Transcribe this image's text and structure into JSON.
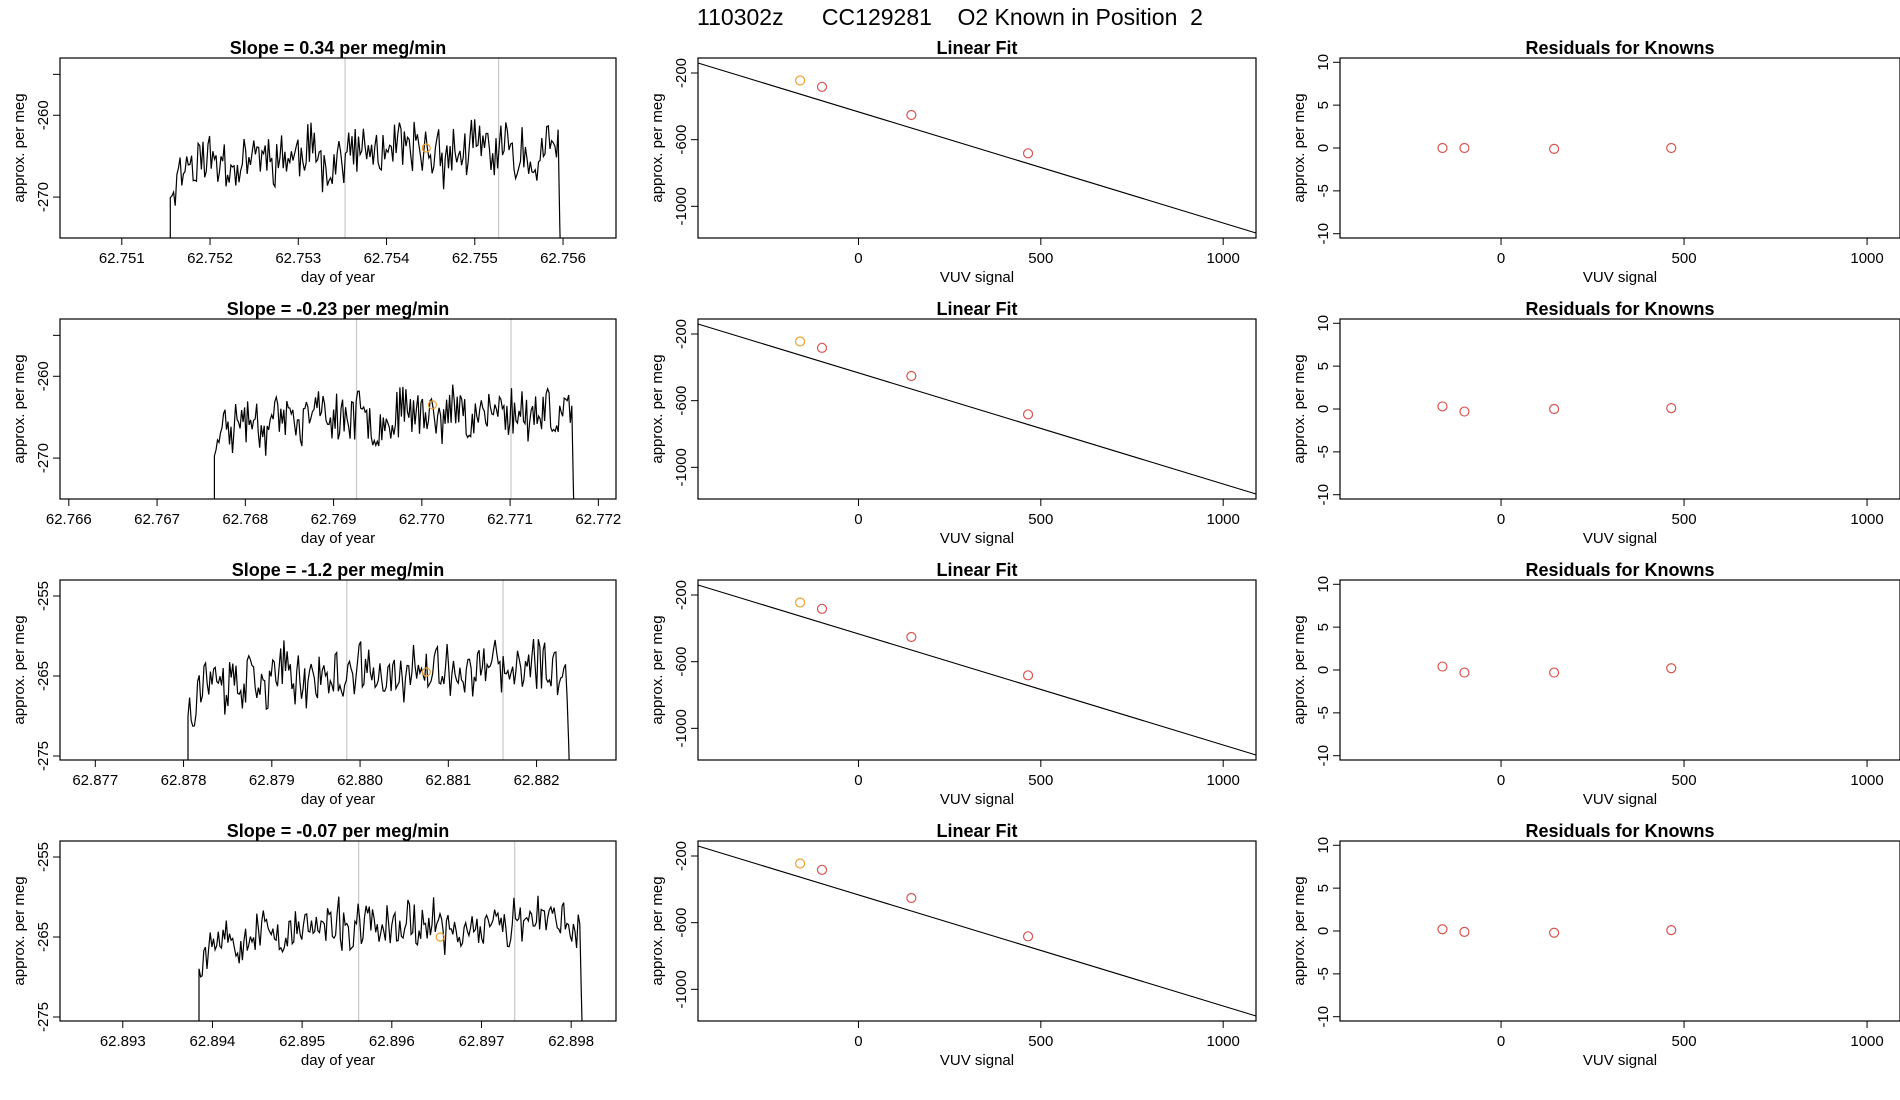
{
  "page_title": "110302z      CC129281    O2 Known in Position  2",
  "chart_data": [
    {
      "type": "line",
      "panel": "time-series",
      "title": "Slope =  0.34  per meg/min",
      "xlabel": "day of year",
      "ylabel": "approx. per meg",
      "xlim": [
        62.7503,
        62.7566
      ],
      "ylim": [
        -275,
        -253
      ],
      "xticks": [
        62.751,
        62.752,
        62.753,
        62.754,
        62.755,
        62.756
      ],
      "xtick_labels": [
        "62.751",
        "62.752",
        "62.753",
        "62.754",
        "62.755",
        "62.756"
      ],
      "yticks": [
        -270,
        -260
      ],
      "ytick_labels": [
        "-270",
        "-260"
      ],
      "yextra_ticks": [
        -255
      ],
      "vlines": [
        62.75353,
        62.75527
      ],
      "start": 62.75155,
      "end": 62.756,
      "baseline": -265.5,
      "amp": 2.8,
      "seed": 11,
      "marker": {
        "x": 62.75445,
        "y": -264
      }
    },
    {
      "type": "scatter",
      "panel": "linear-fit",
      "title": "Linear Fit",
      "xlabel": "VUV signal",
      "ylabel": "approx. per meg",
      "xlim": [
        -440,
        1090
      ],
      "ylim": [
        -1190,
        -110
      ],
      "xticks": [
        0,
        500,
        1000
      ],
      "xtick_labels": [
        "0",
        "500",
        "1000"
      ],
      "yticks": [
        -1000,
        -600,
        -200
      ],
      "ytick_labels": [
        "-1000",
        "-600",
        "-200"
      ],
      "line": {
        "x": [
          -440,
          1090
        ],
        "y": [
          -140,
          -1160
        ]
      },
      "points": {
        "x": [
          -160,
          -100,
          145,
          465
        ],
        "y": [
          -245,
          -283,
          -452,
          -682
        ]
      },
      "highlight_index": 0
    },
    {
      "type": "scatter",
      "panel": "residuals",
      "title": "Residuals for Knowns",
      "xlabel": "VUV signal",
      "ylabel": "approx. per meg",
      "xlim": [
        -440,
        1090
      ],
      "ylim": [
        -10.5,
        10.5
      ],
      "xticks": [
        0,
        500,
        1000
      ],
      "xtick_labels": [
        "0",
        "500",
        "1000"
      ],
      "yticks": [
        -10,
        -5,
        0,
        5,
        10
      ],
      "ytick_labels": [
        "-10",
        "-5",
        "0",
        "5",
        "10"
      ],
      "points": {
        "x": [
          -160,
          -100,
          145,
          465
        ],
        "y": [
          0.0,
          0.0,
          -0.1,
          0.0
        ]
      }
    },
    {
      "type": "line",
      "panel": "time-series",
      "title": "Slope =  -0.23  per meg/min",
      "xlabel": "day of year",
      "ylabel": "approx. per meg",
      "xlim": [
        62.7659,
        62.7722
      ],
      "ylim": [
        -275,
        -253
      ],
      "xticks": [
        62.766,
        62.767,
        62.768,
        62.769,
        62.77,
        62.771,
        62.772
      ],
      "xtick_labels": [
        "62.766",
        "62.767",
        "62.768",
        "62.769",
        "62.770",
        "62.771",
        "62.772"
      ],
      "yticks": [
        -270,
        -260
      ],
      "ytick_labels": [
        "-270",
        "-260"
      ],
      "yextra_ticks": [
        -255
      ],
      "vlines": [
        62.76926,
        62.77101
      ],
      "start": 62.76765,
      "end": 62.77175,
      "baseline": -265.2,
      "amp": 2.6,
      "seed": 23,
      "marker": {
        "x": 62.77012,
        "y": -263.5
      }
    },
    {
      "type": "scatter",
      "panel": "linear-fit",
      "title": "Linear Fit",
      "xlabel": "VUV signal",
      "ylabel": "approx. per meg",
      "xlim": [
        -440,
        1090
      ],
      "ylim": [
        -1190,
        -110
      ],
      "xticks": [
        0,
        500,
        1000
      ],
      "xtick_labels": [
        "0",
        "500",
        "1000"
      ],
      "yticks": [
        -1000,
        -600,
        -200
      ],
      "ytick_labels": [
        "-1000",
        "-600",
        "-200"
      ],
      "line": {
        "x": [
          -440,
          1090
        ],
        "y": [
          -140,
          -1160
        ]
      },
      "points": {
        "x": [
          -160,
          -100,
          145,
          465
        ],
        "y": [
          -245,
          -283,
          -452,
          -682
        ]
      },
      "highlight_index": 0
    },
    {
      "type": "scatter",
      "panel": "residuals",
      "title": "Residuals for Knowns",
      "xlabel": "VUV signal",
      "ylabel": "approx. per meg",
      "xlim": [
        -440,
        1090
      ],
      "ylim": [
        -10.5,
        10.5
      ],
      "xticks": [
        0,
        500,
        1000
      ],
      "xtick_labels": [
        "0",
        "500",
        "1000"
      ],
      "yticks": [
        -10,
        -5,
        0,
        5,
        10
      ],
      "ytick_labels": [
        "-10",
        "-5",
        "0",
        "5",
        "10"
      ],
      "points": {
        "x": [
          -160,
          -100,
          145,
          465
        ],
        "y": [
          0.3,
          -0.3,
          0.0,
          0.1
        ]
      }
    },
    {
      "type": "line",
      "panel": "time-series",
      "title": "Slope =  -1.2  per meg/min",
      "xlabel": "day of year",
      "ylabel": "approx. per meg",
      "xlim": [
        62.8766,
        62.8829
      ],
      "ylim": [
        -275.5,
        -253
      ],
      "xticks": [
        62.877,
        62.878,
        62.879,
        62.88,
        62.881,
        62.882
      ],
      "xtick_labels": [
        "62.877",
        "62.878",
        "62.879",
        "62.880",
        "62.881",
        "62.882"
      ],
      "yticks": [
        -275,
        -265,
        -255
      ],
      "ytick_labels": [
        "-275",
        "-265",
        "-255"
      ],
      "yextra_ticks": [],
      "vlines": [
        62.87985,
        62.88162
      ],
      "start": 62.87805,
      "end": 62.8824,
      "baseline": -265.5,
      "amp": 3.0,
      "seed": 37,
      "marker": {
        "x": 62.88075,
        "y": -264.5
      }
    },
    {
      "type": "scatter",
      "panel": "linear-fit",
      "title": "Linear Fit",
      "xlabel": "VUV signal",
      "ylabel": "approx. per meg",
      "xlim": [
        -440,
        1090
      ],
      "ylim": [
        -1190,
        -110
      ],
      "xticks": [
        0,
        500,
        1000
      ],
      "xtick_labels": [
        "0",
        "500",
        "1000"
      ],
      "yticks": [
        -1000,
        -600,
        -200
      ],
      "ytick_labels": [
        "-1000",
        "-600",
        "-200"
      ],
      "line": {
        "x": [
          -440,
          1090
        ],
        "y": [
          -140,
          -1160
        ]
      },
      "points": {
        "x": [
          -160,
          -100,
          145,
          465
        ],
        "y": [
          -245,
          -283,
          -452,
          -682
        ]
      },
      "highlight_index": 0
    },
    {
      "type": "scatter",
      "panel": "residuals",
      "title": "Residuals for Knowns",
      "xlabel": "VUV signal",
      "ylabel": "approx. per meg",
      "xlim": [
        -440,
        1090
      ],
      "ylim": [
        -10.5,
        10.5
      ],
      "xticks": [
        0,
        500,
        1000
      ],
      "xtick_labels": [
        "0",
        "500",
        "1000"
      ],
      "yticks": [
        -10,
        -5,
        0,
        5,
        10
      ],
      "ytick_labels": [
        "-10",
        "-5",
        "0",
        "5",
        "10"
      ],
      "points": {
        "x": [
          -160,
          -100,
          145,
          465
        ],
        "y": [
          0.4,
          -0.3,
          -0.3,
          0.2
        ]
      }
    },
    {
      "type": "line",
      "panel": "time-series",
      "title": "Slope =  -0.07  per meg/min",
      "xlabel": "day of year",
      "ylabel": "approx. per meg",
      "xlim": [
        62.8923,
        62.8985
      ],
      "ylim": [
        -275.5,
        -253
      ],
      "xticks": [
        62.893,
        62.894,
        62.895,
        62.896,
        62.897,
        62.898
      ],
      "xtick_labels": [
        "62.893",
        "62.894",
        "62.895",
        "62.896",
        "62.897",
        "62.898"
      ],
      "yticks": [
        -275,
        -265,
        -255
      ],
      "ytick_labels": [
        "-275",
        "-265",
        "-255"
      ],
      "yextra_ticks": [],
      "vlines": [
        62.89563,
        62.89737
      ],
      "start": 62.89385,
      "end": 62.89815,
      "baseline": -264.5,
      "amp": 2.3,
      "seed": 53,
      "marker": {
        "x": 62.89654,
        "y": -265
      }
    },
    {
      "type": "scatter",
      "panel": "linear-fit",
      "title": "Linear Fit",
      "xlabel": "VUV signal",
      "ylabel": "approx. per meg",
      "xlim": [
        -440,
        1090
      ],
      "ylim": [
        -1190,
        -110
      ],
      "xticks": [
        0,
        500,
        1000
      ],
      "xtick_labels": [
        "0",
        "500",
        "1000"
      ],
      "yticks": [
        -1000,
        -600,
        -200
      ],
      "ytick_labels": [
        "-1000",
        "-600",
        "-200"
      ],
      "line": {
        "x": [
          -440,
          1090
        ],
        "y": [
          -140,
          -1160
        ]
      },
      "points": {
        "x": [
          -160,
          -100,
          145,
          465
        ],
        "y": [
          -245,
          -283,
          -452,
          -682
        ]
      },
      "highlight_index": 0
    },
    {
      "type": "scatter",
      "panel": "residuals",
      "title": "Residuals for Knowns",
      "xlabel": "VUV signal",
      "ylabel": "approx. per meg",
      "xlim": [
        -440,
        1090
      ],
      "ylim": [
        -10.5,
        10.5
      ],
      "xticks": [
        0,
        500,
        1000
      ],
      "xtick_labels": [
        "0",
        "500",
        "1000"
      ],
      "yticks": [
        -10,
        -5,
        0,
        5,
        10
      ],
      "ytick_labels": [
        "-10",
        "-5",
        "0",
        "5",
        "10"
      ],
      "points": {
        "x": [
          -160,
          -100,
          145,
          465
        ],
        "y": [
          0.2,
          -0.1,
          -0.2,
          0.1
        ]
      }
    }
  ],
  "colors": {
    "point": "#d9534f",
    "highlight": "#f0a030",
    "vline": "#c8c8c8",
    "axis": "#000000"
  }
}
